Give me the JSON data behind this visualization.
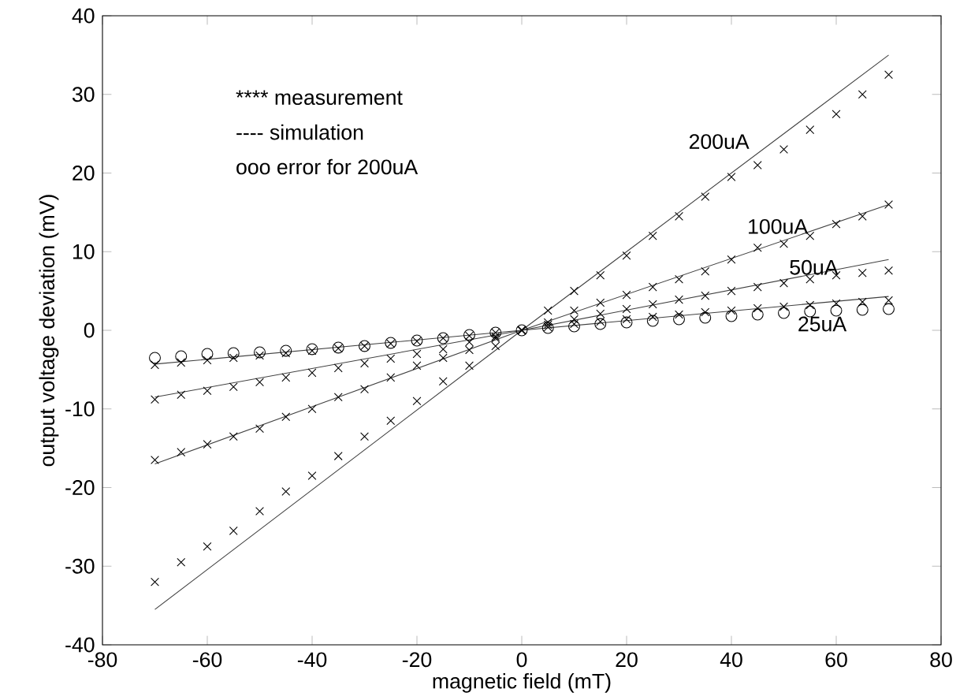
{
  "chart_data": {
    "type": "scatter",
    "marker": "cross",
    "xlabel": "magnetic field (mT)",
    "ylabel": "output voltage deviation (mV)",
    "x": [
      -70,
      -65,
      -60,
      -55,
      -50,
      -45,
      -40,
      -35,
      -30,
      -25,
      -20,
      -15,
      -10,
      -5,
      0,
      5,
      10,
      15,
      20,
      25,
      30,
      35,
      40,
      45,
      50,
      55,
      60,
      65,
      70
    ],
    "xlim": [
      -80,
      80
    ],
    "ylim": [
      -40,
      40
    ],
    "xticks": [
      -80,
      -60,
      -40,
      -20,
      0,
      20,
      40,
      60,
      80
    ],
    "yticks": [
      -40,
      -30,
      -20,
      -10,
      0,
      10,
      20,
      30,
      40
    ],
    "grid": false,
    "series": [
      {
        "type": "line",
        "marker": "none",
        "line_style": "solid",
        "color": "#404040",
        "x": [
          -70,
          0,
          70
        ],
        "values": [
          -35.5,
          0,
          35
        ]
      },
      {
        "type": "line",
        "marker": "none",
        "line_style": "solid",
        "color": "#404040",
        "x": [
          -70,
          0,
          70
        ],
        "values": [
          -17,
          0,
          16
        ]
      },
      {
        "type": "line",
        "marker": "none",
        "line_style": "solid",
        "color": "#404040",
        "x": [
          -70,
          0,
          70
        ],
        "values": [
          -8.5,
          0,
          9
        ]
      },
      {
        "type": "line",
        "marker": "none",
        "line_style": "solid",
        "color": "#404040",
        "x": [
          -70,
          0,
          70
        ],
        "values": [
          -4.3,
          0,
          4.3
        ]
      },
      {
        "color": "#000000",
        "values": [
          -32,
          -29.5,
          -27.5,
          -25.5,
          -23,
          -20.5,
          -18.5,
          -16,
          -13.5,
          -11.5,
          -9,
          -6.5,
          -4.5,
          -2,
          0,
          2.5,
          5,
          7,
          9.5,
          12,
          14.5,
          17,
          19.5,
          21,
          23,
          25.5,
          27.5,
          30,
          32.5
        ]
      },
      {
        "color": "#000000",
        "values": [
          -16.5,
          -15.5,
          -14.5,
          -13.5,
          -12.5,
          -11,
          -10,
          -8.5,
          -7.5,
          -6,
          -4.5,
          -3.5,
          -2.5,
          -1,
          0,
          1,
          2.5,
          3.5,
          4.5,
          5.5,
          6.5,
          7.5,
          9,
          10.5,
          11,
          12,
          13.5,
          14.5,
          16
        ]
      },
      {
        "color": "#000000",
        "values": [
          -8.8,
          -8.2,
          -7.7,
          -7.2,
          -6.6,
          -6,
          -5.4,
          -4.8,
          -4.2,
          -3.6,
          -3,
          -2.4,
          -1.5,
          -0.8,
          0,
          0.7,
          1.4,
          2.1,
          2.7,
          3.3,
          3.9,
          4.4,
          5,
          5.5,
          6,
          6.5,
          7,
          7.3,
          7.6
        ]
      },
      {
        "color": "#000000",
        "values": [
          -4.4,
          -4.1,
          -3.8,
          -3.5,
          -3.2,
          -2.9,
          -2.6,
          -2.3,
          -2,
          -1.7,
          -1.4,
          -1,
          -0.7,
          -0.3,
          0,
          0.4,
          0.8,
          1.1,
          1.4,
          1.7,
          2,
          2.3,
          2.5,
          2.8,
          3,
          3.2,
          3.4,
          3.6,
          3.8
        ]
      },
      {
        "marker": "circle",
        "color": "#000000",
        "values": [
          -3.5,
          -3.3,
          -3,
          -2.9,
          -2.8,
          -2.6,
          -2.4,
          -2.2,
          -2,
          -1.6,
          -1.3,
          -1,
          -0.6,
          -0.3,
          0,
          0.3,
          0.5,
          0.8,
          1,
          1.2,
          1.4,
          1.6,
          1.8,
          2,
          2.2,
          2.4,
          2.5,
          2.6,
          2.7
        ]
      }
    ],
    "annotations": [
      "**** measurement",
      "---- simulation",
      "ooo  error for 200uA",
      "200uA",
      "100uA",
      "50uA",
      "25uA"
    ]
  }
}
